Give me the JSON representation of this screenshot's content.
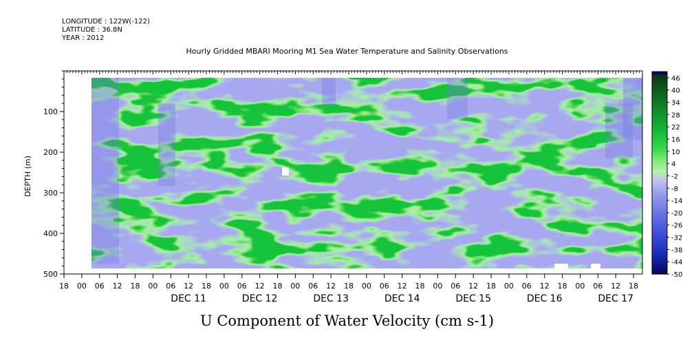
{
  "header": {
    "longitude": "LONGITUDE : 122W(-122)",
    "latitude": "LATITUDE : 36.8N",
    "year": "YEAR : 2012"
  },
  "chart_data": {
    "type": "heatmap",
    "title": "Hourly Gridded MBARI Mooring M1 Sea Water Temperature and Salinity Observations",
    "bottom_title": "U Component of Water Velocity (cm s-1)",
    "ylabel": "DEPTH (m)",
    "xlabel": "",
    "ylim": [
      500,
      0
    ],
    "y_ticks": [
      100,
      200,
      300,
      400,
      500
    ],
    "x_range_hours": [
      -30,
      165
    ],
    "x_tick_hour_labels": [
      "00",
      "06",
      "12",
      "18"
    ],
    "day_labels": [
      "DEC 11",
      "DEC 12",
      "DEC 13",
      "DEC 14",
      "DEC 15",
      "DEC 16",
      "DEC 17"
    ],
    "colorbar_levels": [
      46,
      40,
      34,
      28,
      22,
      16,
      10,
      4,
      -2,
      -8,
      -14,
      -20,
      -26,
      -32,
      -38,
      -44,
      -50
    ],
    "colors": {
      "dark_green": "#0f3d18",
      "mid_green": "#18c43a",
      "light_green": "#6de56a",
      "pale_green": "#a8f0a0",
      "pale_blue": "#a8a8f0",
      "mid_blue": "#6f78e0",
      "dark_blue": "#0a0a78"
    }
  }
}
